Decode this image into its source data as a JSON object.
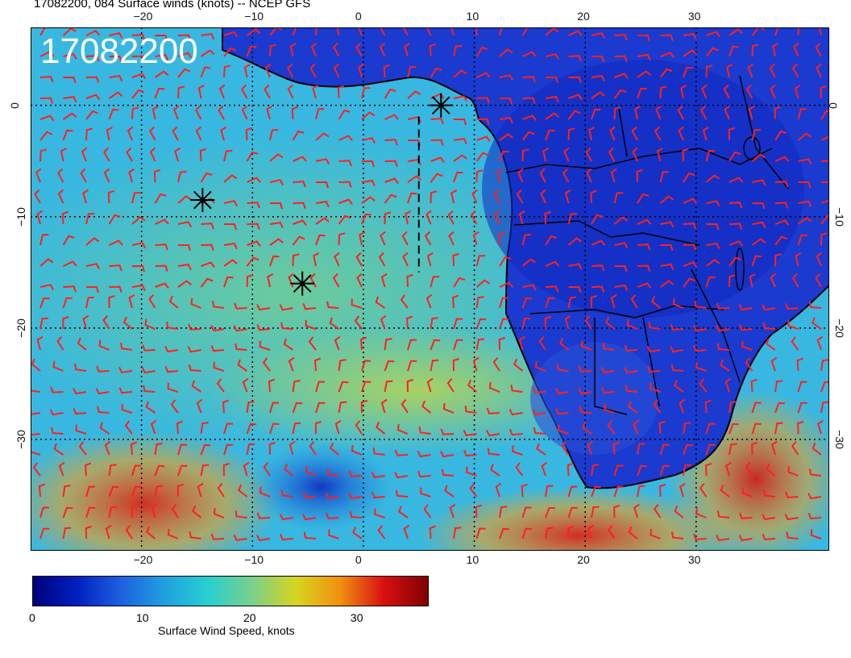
{
  "header": {
    "title": "17082200, 084 Surface winds (knots) -- NCEP GFS",
    "stamp": "17082200"
  },
  "map": {
    "lon_range": [
      -30,
      42
    ],
    "lat_range": [
      -40,
      7
    ],
    "grid_on": true,
    "lon_ticks": [
      -20,
      -10,
      0,
      10,
      20,
      30
    ],
    "lat_ticks": [
      0,
      -10,
      -20,
      -30
    ],
    "lon_tick_labels": [
      "−20",
      "−10",
      "0",
      "10",
      "20",
      "30"
    ],
    "lat_tick_labels": [
      "0",
      "−10",
      "−20",
      "−30"
    ],
    "wind_barb_color": "#ff2020",
    "markers": [
      {
        "lon": 7,
        "lat": 0,
        "symbol": "star"
      },
      {
        "lon": -14.5,
        "lat": -8.5,
        "symbol": "star"
      },
      {
        "lon": -5.5,
        "lat": -16,
        "symbol": "star"
      }
    ],
    "dashed_line": {
      "lon": 5,
      "lat_from": -1,
      "lat_to": -15
    }
  },
  "colorbar": {
    "title": "Surface Wind Speed, knots",
    "min": 0,
    "max": 37,
    "tick_values": [
      0,
      10,
      20,
      30
    ],
    "tick_labels": [
      "0",
      "10",
      "20",
      "30"
    ],
    "colors": [
      "#00007a",
      "#0020c0",
      "#1e60e0",
      "#20a0e0",
      "#28d0d0",
      "#7ad08a",
      "#d8d420",
      "#f09010",
      "#d81010",
      "#800000"
    ]
  }
}
